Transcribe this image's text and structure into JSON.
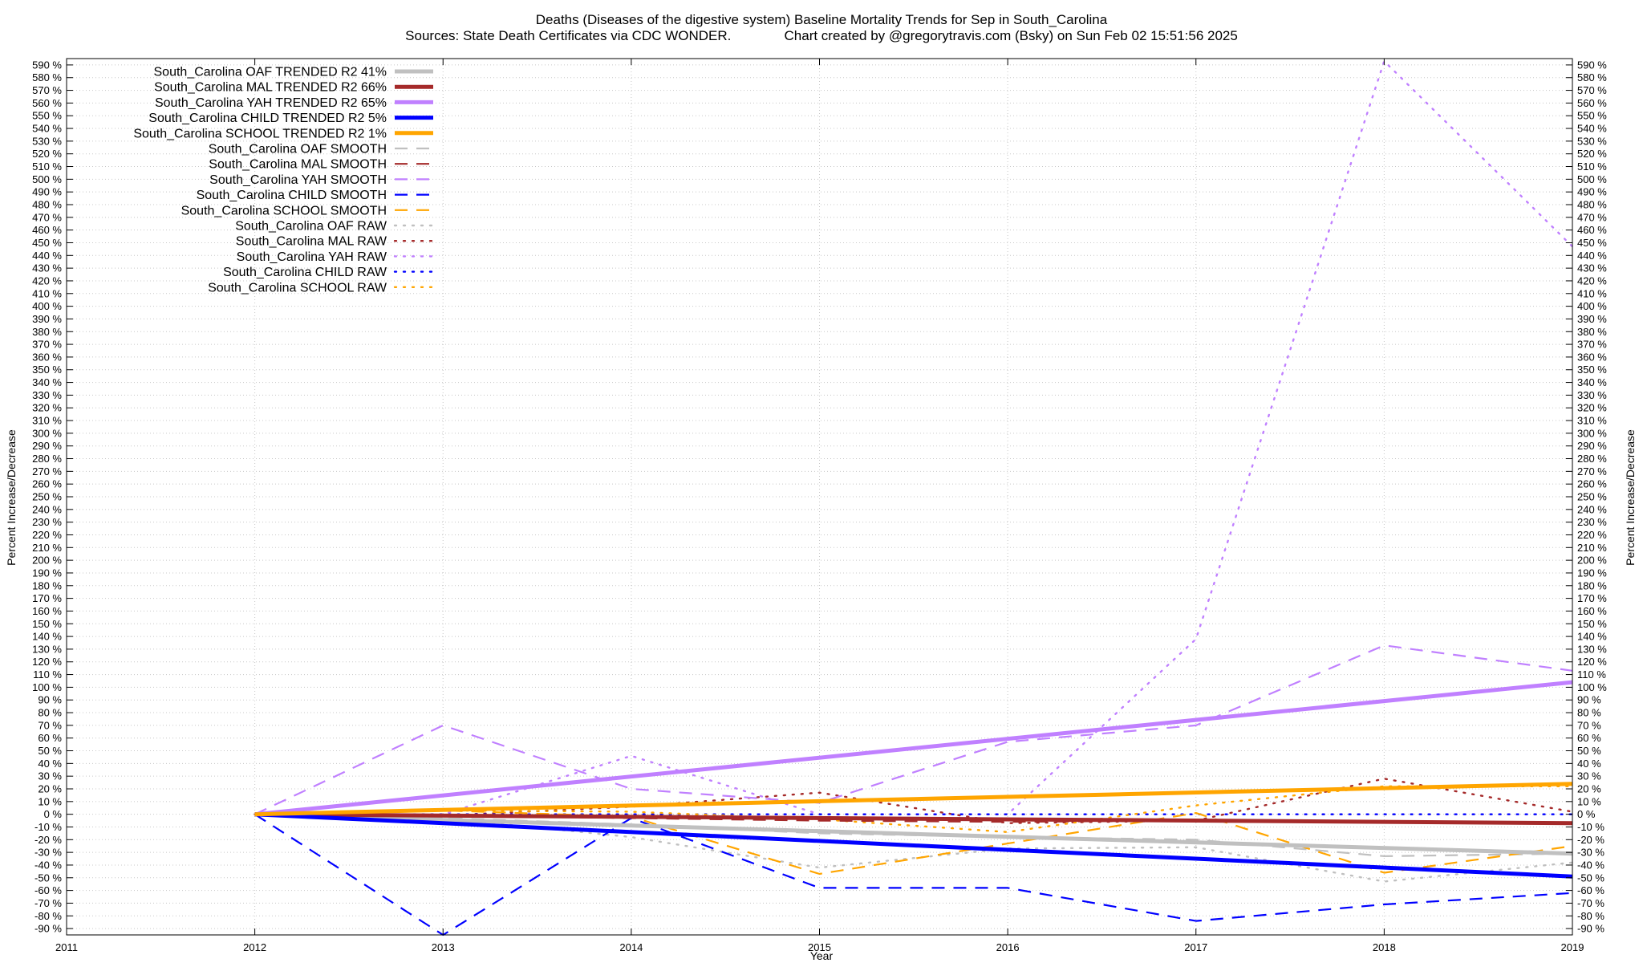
{
  "chart_data": {
    "type": "line",
    "title": "Deaths (Diseases of the digestive system)  Baseline Mortality Trends for Sep in South_Carolina",
    "subtitle": "Sources: State Death Certificates via CDC WONDER.              Chart created by @gregorytravis.com (Bsky) on Sun Feb 02 15:51:56 2025",
    "xlabel": "Year",
    "ylabel": "Percent Increase/Decrease",
    "ylabel_right": "Percent Increase/Decrease",
    "xlim": [
      2011,
      2019
    ],
    "ylim": [
      -95,
      595
    ],
    "x_ticks": [
      2011,
      2012,
      2013,
      2014,
      2015,
      2016,
      2017,
      2018,
      2019
    ],
    "y_tick_min": -90,
    "y_tick_max": 590,
    "y_tick_step": 10,
    "y_tick_suffix": " %",
    "grid": true,
    "legend_position": "top-left",
    "series": [
      {
        "name": "South_Carolina OAF TRENDED R2  41%",
        "color": "#c0c0c0",
        "style": "solid",
        "x": [
          2012,
          2019
        ],
        "values": [
          0,
          -31
        ]
      },
      {
        "name": "South_Carolina MAL TRENDED R2  66%",
        "color": "#a52a2a",
        "style": "solid",
        "x": [
          2012,
          2019
        ],
        "values": [
          0,
          -7
        ]
      },
      {
        "name": "South_Carolina YAH TRENDED R2  65%",
        "color": "#c080ff",
        "style": "solid",
        "x": [
          2012,
          2019
        ],
        "values": [
          0,
          104
        ]
      },
      {
        "name": "South_Carolina CHILD TRENDED R2   5%",
        "color": "#0000ff",
        "style": "solid",
        "x": [
          2012,
          2019
        ],
        "values": [
          0,
          -49
        ]
      },
      {
        "name": "South_Carolina SCHOOL TRENDED R2   1%",
        "color": "#ffa500",
        "style": "solid",
        "x": [
          2012,
          2019
        ],
        "values": [
          0,
          24
        ]
      },
      {
        "name": "South_Carolina OAF SMOOTH",
        "color": "#c0c0c0",
        "style": "dashed",
        "x": [
          2012,
          2013,
          2014,
          2015,
          2016,
          2017,
          2018,
          2019
        ],
        "values": [
          0,
          -3,
          -8,
          -15,
          -18,
          -20,
          -33,
          -31
        ]
      },
      {
        "name": "South_Carolina MAL SMOOTH",
        "color": "#a52a2a",
        "style": "dashed",
        "x": [
          2012,
          2013,
          2014,
          2015,
          2016,
          2017,
          2018,
          2019
        ],
        "values": [
          0,
          -1,
          -3,
          -5,
          -6,
          -5,
          -6,
          -7
        ]
      },
      {
        "name": "South_Carolina YAH SMOOTH",
        "color": "#c080ff",
        "style": "dashed",
        "x": [
          2012,
          2013,
          2014,
          2015,
          2016,
          2017,
          2018,
          2019
        ],
        "values": [
          0,
          70,
          20,
          9,
          57,
          70,
          133,
          113
        ]
      },
      {
        "name": "South_Carolina CHILD SMOOTH",
        "color": "#0000ff",
        "style": "dashed",
        "x": [
          2012,
          2013,
          2014,
          2015,
          2016,
          2017,
          2018,
          2019
        ],
        "values": [
          0,
          -95,
          -3,
          -58,
          -58,
          -84,
          -71,
          -62
        ]
      },
      {
        "name": "South_Carolina SCHOOL SMOOTH",
        "color": "#ffa500",
        "style": "dashed",
        "x": [
          2012,
          2013,
          2014,
          2015,
          2016,
          2017,
          2018,
          2019
        ],
        "values": [
          0,
          3,
          -2,
          -47,
          -23,
          1,
          -46,
          -25
        ]
      },
      {
        "name": "South_Carolina OAF RAW",
        "color": "#c0c0c0",
        "style": "dotted",
        "x": [
          2012,
          2013,
          2014,
          2015,
          2016,
          2017,
          2018,
          2019
        ],
        "values": [
          0,
          -3,
          -18,
          -42,
          -27,
          -26,
          -53,
          -38
        ]
      },
      {
        "name": "South_Carolina MAL RAW",
        "color": "#a52a2a",
        "style": "dotted",
        "x": [
          2012,
          2013,
          2014,
          2015,
          2016,
          2017,
          2018,
          2019
        ],
        "values": [
          0,
          -1,
          6,
          17,
          -7,
          -5,
          28,
          2
        ]
      },
      {
        "name": "South_Carolina YAH RAW",
        "color": "#c080ff",
        "style": "dotted",
        "x": [
          2012,
          2013,
          2014,
          2015,
          2016,
          2017,
          2018,
          2019
        ],
        "values": [
          0,
          0,
          46,
          0,
          0,
          138,
          593,
          447
        ]
      },
      {
        "name": "South_Carolina CHILD RAW",
        "color": "#0000ff",
        "style": "dotted",
        "x": [
          2012,
          2013,
          2014,
          2015,
          2016,
          2017,
          2018,
          2019
        ],
        "values": [
          0,
          0,
          0,
          0,
          0,
          0,
          0,
          0
        ]
      },
      {
        "name": "South_Carolina SCHOOL RAW",
        "color": "#ffa500",
        "style": "dotted",
        "x": [
          2012,
          2013,
          2014,
          2015,
          2016,
          2017,
          2018,
          2019
        ],
        "values": [
          0,
          3,
          2,
          -4,
          -14,
          7,
          22,
          22
        ]
      }
    ]
  }
}
